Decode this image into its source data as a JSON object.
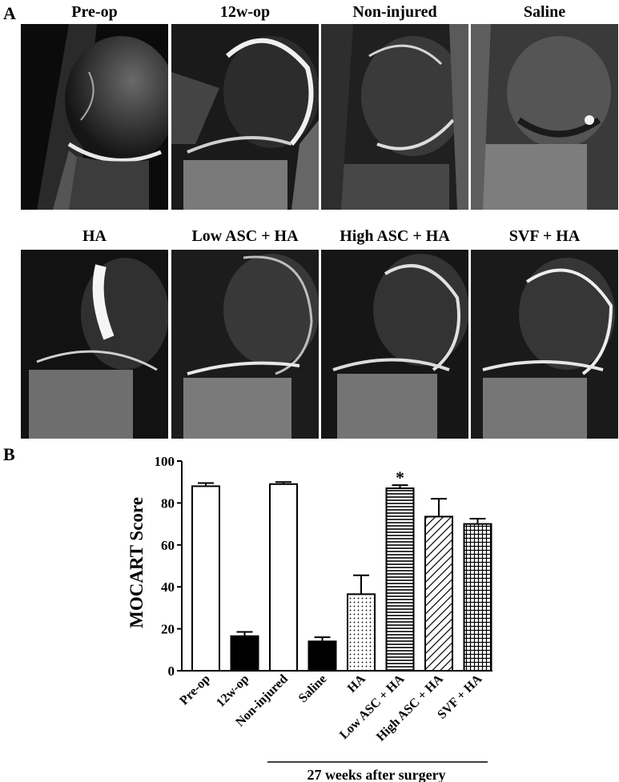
{
  "panels": {
    "a": "A",
    "b": "B"
  },
  "mri_titles": [
    "Pre-op",
    "12w-op",
    "Non-injured",
    "Saline",
    "HA",
    "Low ASC + HA",
    "High ASC + HA",
    "SVF + HA"
  ],
  "chart_data": {
    "type": "bar",
    "ylabel": "MOCART Score",
    "ylim": [
      0,
      100
    ],
    "yticks": [
      0,
      20,
      40,
      60,
      80,
      100
    ],
    "categories": [
      "Pre-op",
      "12w-op",
      "Non-injured",
      "Saline",
      "HA",
      "Low ASC + HA",
      "High ASC + HA",
      "SVF + HA"
    ],
    "values": [
      88,
      16.5,
      89,
      14,
      36.5,
      87,
      73.5,
      70
    ],
    "errors": [
      1.5,
      2,
      1,
      2,
      9,
      1.5,
      8.5,
      2.5
    ],
    "fills": [
      "white",
      "black",
      "white",
      "black",
      "dots",
      "horizontal-lines",
      "diagonal-lines",
      "crosshatch"
    ],
    "significance": {
      "category": "Low ASC + HA",
      "marker": "*"
    },
    "bracket_label": "27 weeks after surgery",
    "grid": false
  }
}
